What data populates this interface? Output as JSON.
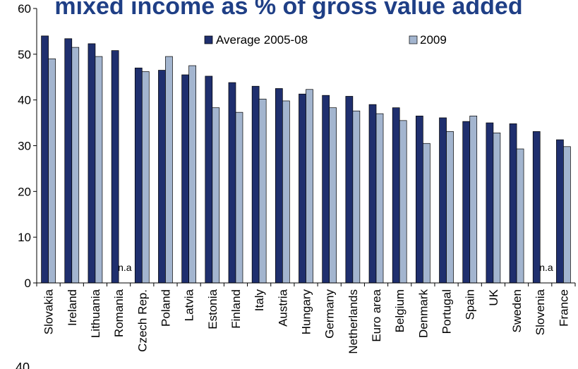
{
  "chart_data": {
    "type": "bar",
    "title": "mixed income as % of gross value added",
    "ylim": [
      0,
      60
    ],
    "yticks": [
      "0",
      "10",
      "20",
      "30",
      "40",
      "50",
      "60"
    ],
    "categories": [
      "Slovakia",
      "Ireland",
      "Lithuania",
      "Romania",
      "Czech Rep.",
      "Poland",
      "Latvia",
      "Estonia",
      "Finland",
      "Italy",
      "Austria",
      "Hungary",
      "Germany",
      "Netherlands",
      "Euro area",
      "Belgium",
      "Denmark",
      "Portugal",
      "Spain",
      "UK",
      "Sweden",
      "Slovenia",
      "France"
    ],
    "series": [
      {
        "name": "Average 2005-08",
        "color": "#1f2f6e",
        "values": [
          54.0,
          53.4,
          52.3,
          50.8,
          47.0,
          46.5,
          45.5,
          45.2,
          43.8,
          43.0,
          42.5,
          41.3,
          41.0,
          40.8,
          39.0,
          38.3,
          36.5,
          36.1,
          35.3,
          35.0,
          34.8,
          33.1,
          31.3
        ]
      },
      {
        "name": "2009",
        "color": "#a3b5cf",
        "values": [
          49.0,
          51.5,
          49.5,
          null,
          46.2,
          49.5,
          47.5,
          38.3,
          37.3,
          40.2,
          39.8,
          42.3,
          38.3,
          37.6,
          37.0,
          35.5,
          30.5,
          33.1,
          36.5,
          32.8,
          29.3,
          null,
          29.8
        ]
      }
    ],
    "annotations": [
      "n.a",
      "n.a"
    ],
    "legend_position": "top",
    "grid": false,
    "stray_tick_text": "40"
  }
}
